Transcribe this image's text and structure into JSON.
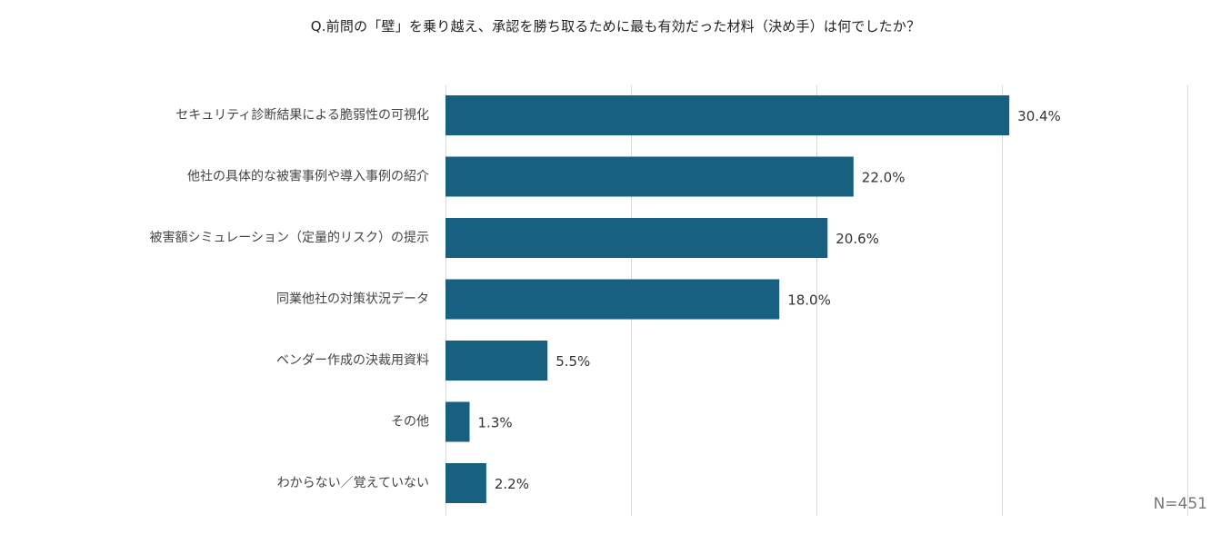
{
  "chart_data": {
    "type": "bar",
    "orientation": "horizontal",
    "title": "Q.前問の「壁」を乗り越え、承認を勝ち取るために最も有効だった材料（決め手）は何でしたか？",
    "categories": [
      "セキュリティ診断結果による脆弱性の可視化",
      "他社の具体的な被害事例や導入事例の紹介",
      "被害額シミュレーション（定量的リスク）の提示",
      "同業他社の対策状況データ",
      "ベンダー作成の決裁用資料",
      "その他",
      "わからない／覚えていない"
    ],
    "values": [
      30.4,
      22.0,
      20.6,
      18.0,
      5.5,
      1.3,
      2.2
    ],
    "value_labels": [
      "30.4%",
      "22.0%",
      "20.6%",
      "18.0%",
      "5.5%",
      "1.3%",
      "2.2%"
    ],
    "xlim": [
      0,
      40
    ],
    "grid": true,
    "bar_color": "#18607f",
    "note": "N=451"
  }
}
